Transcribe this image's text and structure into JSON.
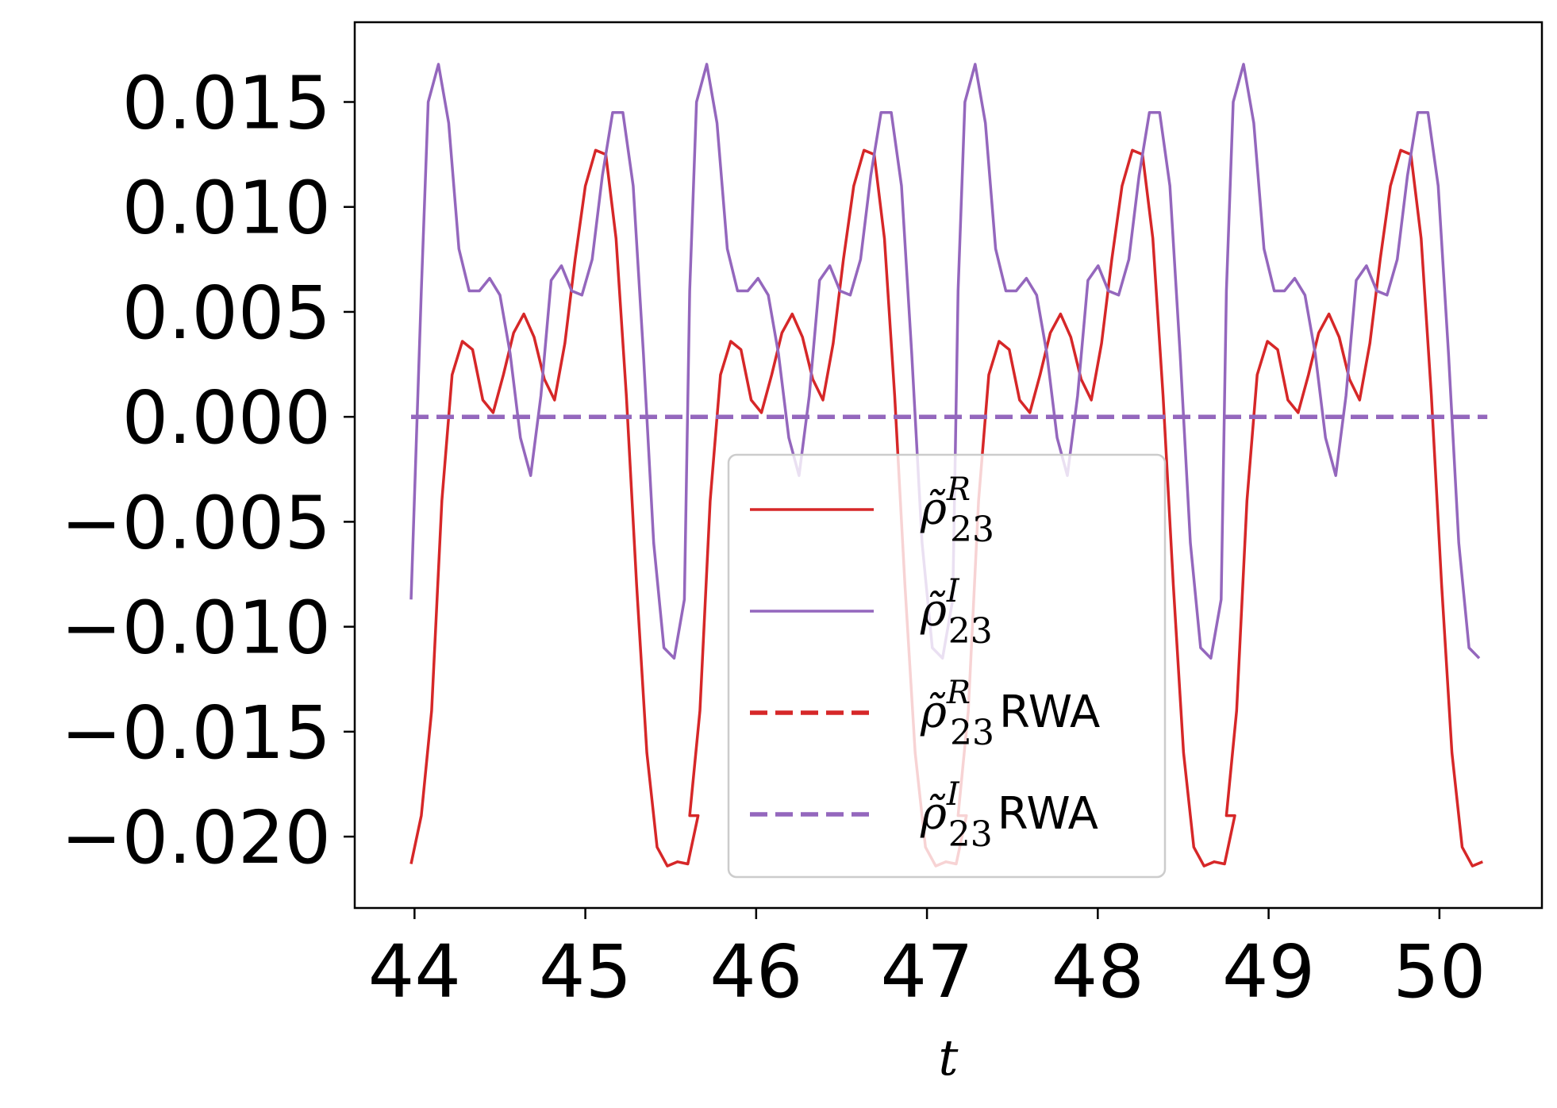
{
  "chart_data": {
    "type": "line",
    "title": "",
    "xlabel": "t",
    "ylabel": "",
    "xlim": [
      43.65,
      50.6
    ],
    "ylim": [
      -0.0234,
      0.0188
    ],
    "x_ticks": [
      44,
      45,
      46,
      47,
      48,
      49,
      50
    ],
    "x_tick_labels": [
      "44",
      "45",
      "46",
      "47",
      "48",
      "49",
      "50"
    ],
    "y_ticks": [
      0.015,
      0.01,
      0.005,
      0.0,
      -0.005,
      -0.01,
      -0.015,
      -0.02
    ],
    "y_tick_labels": [
      "0.015",
      "0.010",
      "0.005",
      "0.000",
      "−0.005",
      "−0.010",
      "−0.015",
      "−0.020"
    ],
    "grid": false,
    "legend_position": "lower-center",
    "period": 1.571,
    "series": [
      {
        "name": "ρ̃_23^R",
        "name_base": "ρ̃",
        "name_sub": "23",
        "name_sup": "R",
        "name_suffix": "",
        "color": "#d62728",
        "style": "solid",
        "x": [
          43.98,
          44.04,
          44.1,
          44.16,
          44.22,
          44.28,
          44.34,
          44.4,
          44.46,
          44.52,
          44.58,
          44.64,
          44.7,
          44.76,
          44.82,
          44.88,
          44.94,
          45.0,
          45.06,
          45.12,
          45.18,
          45.24,
          45.3,
          45.36,
          45.42,
          45.48,
          45.54,
          45.6,
          45.66
        ],
        "y": [
          -0.0213,
          -0.019,
          -0.014,
          -0.004,
          0.002,
          0.0036,
          0.0032,
          0.0008,
          0.0002,
          0.002,
          0.004,
          0.0049,
          0.0038,
          0.0018,
          0.0008,
          0.0035,
          0.0075,
          0.011,
          0.0127,
          0.0125,
          0.0085,
          0.001,
          -0.008,
          -0.016,
          -0.0205,
          -0.0214,
          -0.0212,
          -0.0213,
          -0.019
        ]
      },
      {
        "name": "ρ̃_23^I",
        "name_base": "ρ̃",
        "name_sub": "23",
        "name_sup": "I",
        "name_suffix": "",
        "color": "#9467bd",
        "style": "solid",
        "x": [
          43.98,
          44.04,
          44.08,
          44.14,
          44.2,
          44.26,
          44.32,
          44.38,
          44.44,
          44.5,
          44.56,
          44.62,
          44.68,
          44.74,
          44.8,
          44.86,
          44.92,
          44.98,
          45.04,
          45.1,
          45.16,
          45.22,
          45.28,
          45.34,
          45.4,
          45.46,
          45.52,
          45.58
        ],
        "y": [
          -0.0087,
          0.006,
          0.015,
          0.0168,
          0.014,
          0.008,
          0.006,
          0.006,
          0.0066,
          0.0058,
          0.003,
          -0.001,
          -0.0028,
          0.001,
          0.0065,
          0.0072,
          0.006,
          0.0058,
          0.0075,
          0.0115,
          0.0145,
          0.0145,
          0.011,
          0.003,
          -0.006,
          -0.011,
          -0.0115,
          -0.0087
        ]
      },
      {
        "name": "ρ̃_23^R RWA",
        "name_base": "ρ̃",
        "name_sub": "23",
        "name_sup": "R",
        "name_suffix": "RWA",
        "color": "#d62728",
        "style": "dashed",
        "x": [
          43.98,
          50.28
        ],
        "y": [
          0.0,
          0.0
        ]
      },
      {
        "name": "ρ̃_23^I RWA",
        "name_base": "ρ̃",
        "name_sub": "23",
        "name_sup": "I",
        "name_suffix": "RWA",
        "color": "#9467bd",
        "style": "dashed",
        "x": [
          43.98,
          50.28
        ],
        "y": [
          0.0,
          0.0
        ]
      }
    ]
  }
}
